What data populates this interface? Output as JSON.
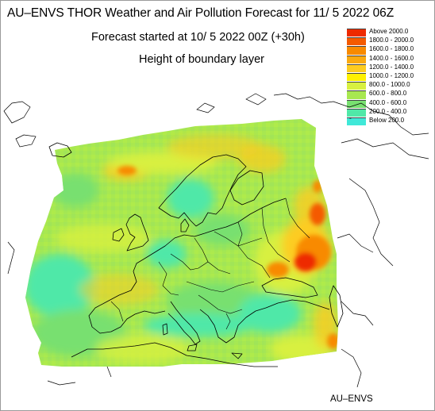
{
  "header": {
    "title": "AU–ENVS THOR Weather and Air Pollution Forecast for 11/ 5 2022  06Z",
    "subtitle": "Forecast started at 10/ 5 2022  00Z (+30h)",
    "parameter": "Height of boundary layer"
  },
  "legend": {
    "items": [
      {
        "label": "Above   2000.0",
        "color": "#ee2a00"
      },
      {
        "label": "1800.0  -  2000.0",
        "color": "#f45a00"
      },
      {
        "label": "1600.0  -  1800.0",
        "color": "#f88a00"
      },
      {
        "label": "1400.0  -  1600.0",
        "color": "#fbaa10"
      },
      {
        "label": "1200.0  -  1400.0",
        "color": "#fdcc20"
      },
      {
        "label": "1000.0  -  1200.0",
        "color": "#fff000"
      },
      {
        "label": "800.0  -  1000.0",
        "color": "#d8f040"
      },
      {
        "label": "600.0  -    800.0",
        "color": "#a8e850"
      },
      {
        "label": "400.0  -    600.0",
        "color": "#78e070"
      },
      {
        "label": "200.0  -    400.0",
        "color": "#50e8a8"
      },
      {
        "label": "Below    200.0",
        "color": "#40e8d8",
        "glyph": "°"
      }
    ]
  },
  "map": {
    "region": "Europe",
    "dominant_colors": [
      "#a8e850",
      "#78e070",
      "#50e8a8",
      "#d8f040",
      "#fdcc20",
      "#f45a00"
    ]
  },
  "footer": {
    "credit": "AU–ENVS"
  }
}
